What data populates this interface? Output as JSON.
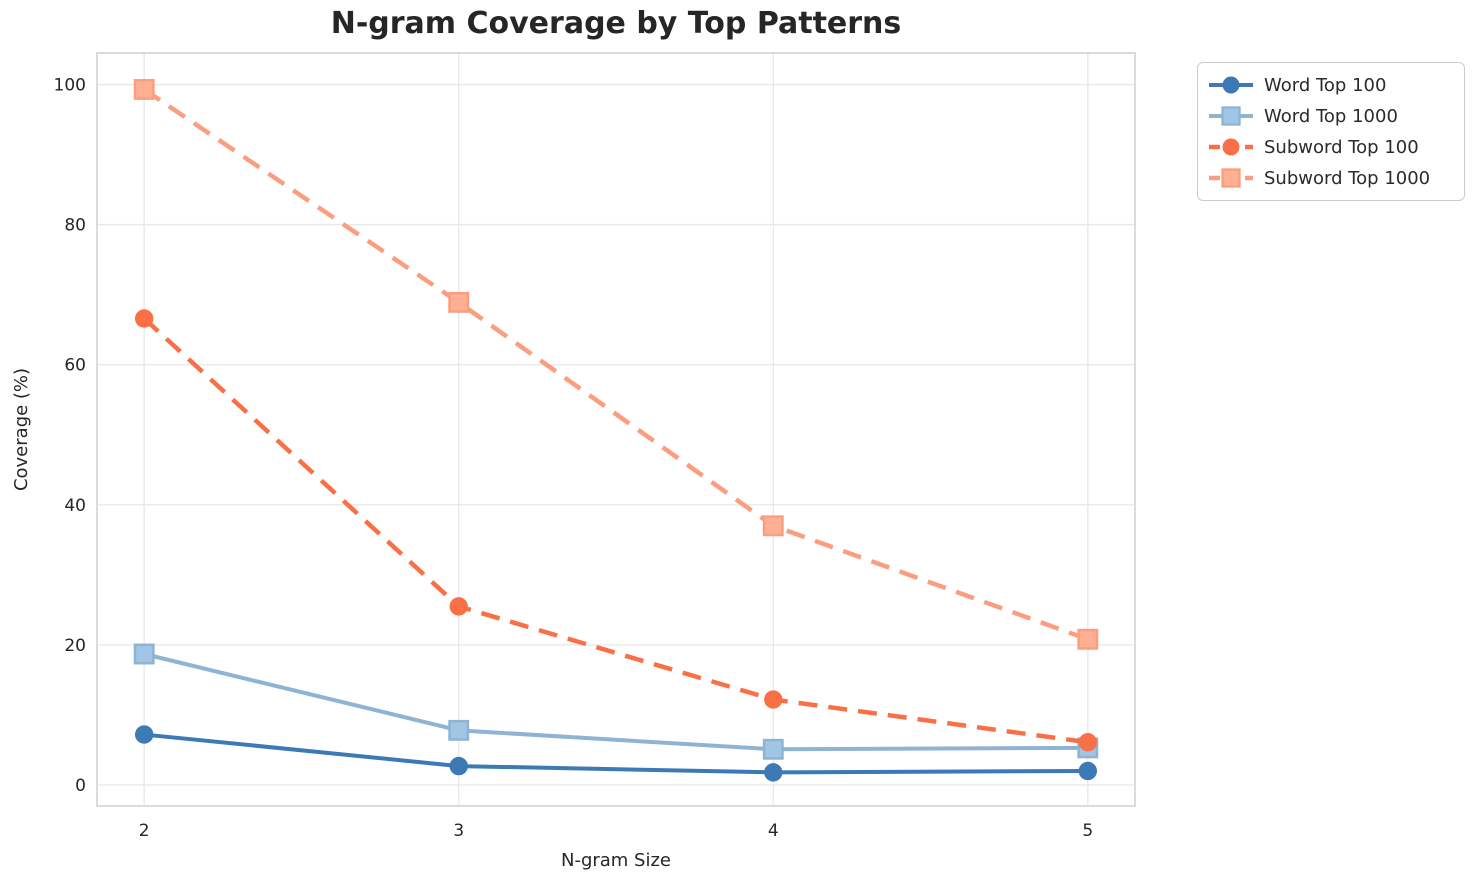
{
  "chart_data": {
    "type": "line",
    "title": "N-gram Coverage by Top Patterns",
    "xlabel": "N-gram Size",
    "ylabel": "Coverage (%)",
    "x": [
      2,
      3,
      4,
      5
    ],
    "x_ticks": [
      "2",
      "3",
      "4",
      "5"
    ],
    "y_ticks": [
      "0",
      "20",
      "40",
      "60",
      "80",
      "100"
    ],
    "y_tick_values": [
      0,
      20,
      40,
      60,
      80,
      100
    ],
    "xlim": [
      1.85,
      5.15
    ],
    "ylim": [
      -3,
      104.5
    ],
    "grid": true,
    "legend_position": "outside upper right",
    "grid_color": "#e9e9e9",
    "spine_color": "#cfcfcf",
    "text_color": "#262626",
    "series": [
      {
        "name": "Word Top 100",
        "values": [
          7.2,
          2.7,
          1.8,
          2.0
        ],
        "color": "#3d79b4",
        "marker": "circle",
        "line_style": "solid"
      },
      {
        "name": "Word Top 1000",
        "values": [
          18.7,
          7.8,
          5.1,
          5.3
        ],
        "color": "#8fb3d3",
        "marker": "square",
        "line_style": "solid"
      },
      {
        "name": "Subword Top 100",
        "values": [
          66.6,
          25.5,
          12.2,
          6.1
        ],
        "color": "#fa7046",
        "marker": "circle",
        "line_style": "dashed"
      },
      {
        "name": "Subword Top 1000",
        "values": [
          99.3,
          68.9,
          37.0,
          20.8
        ],
        "color": "#fb9e80",
        "marker": "square",
        "line_style": "dashed"
      }
    ]
  }
}
